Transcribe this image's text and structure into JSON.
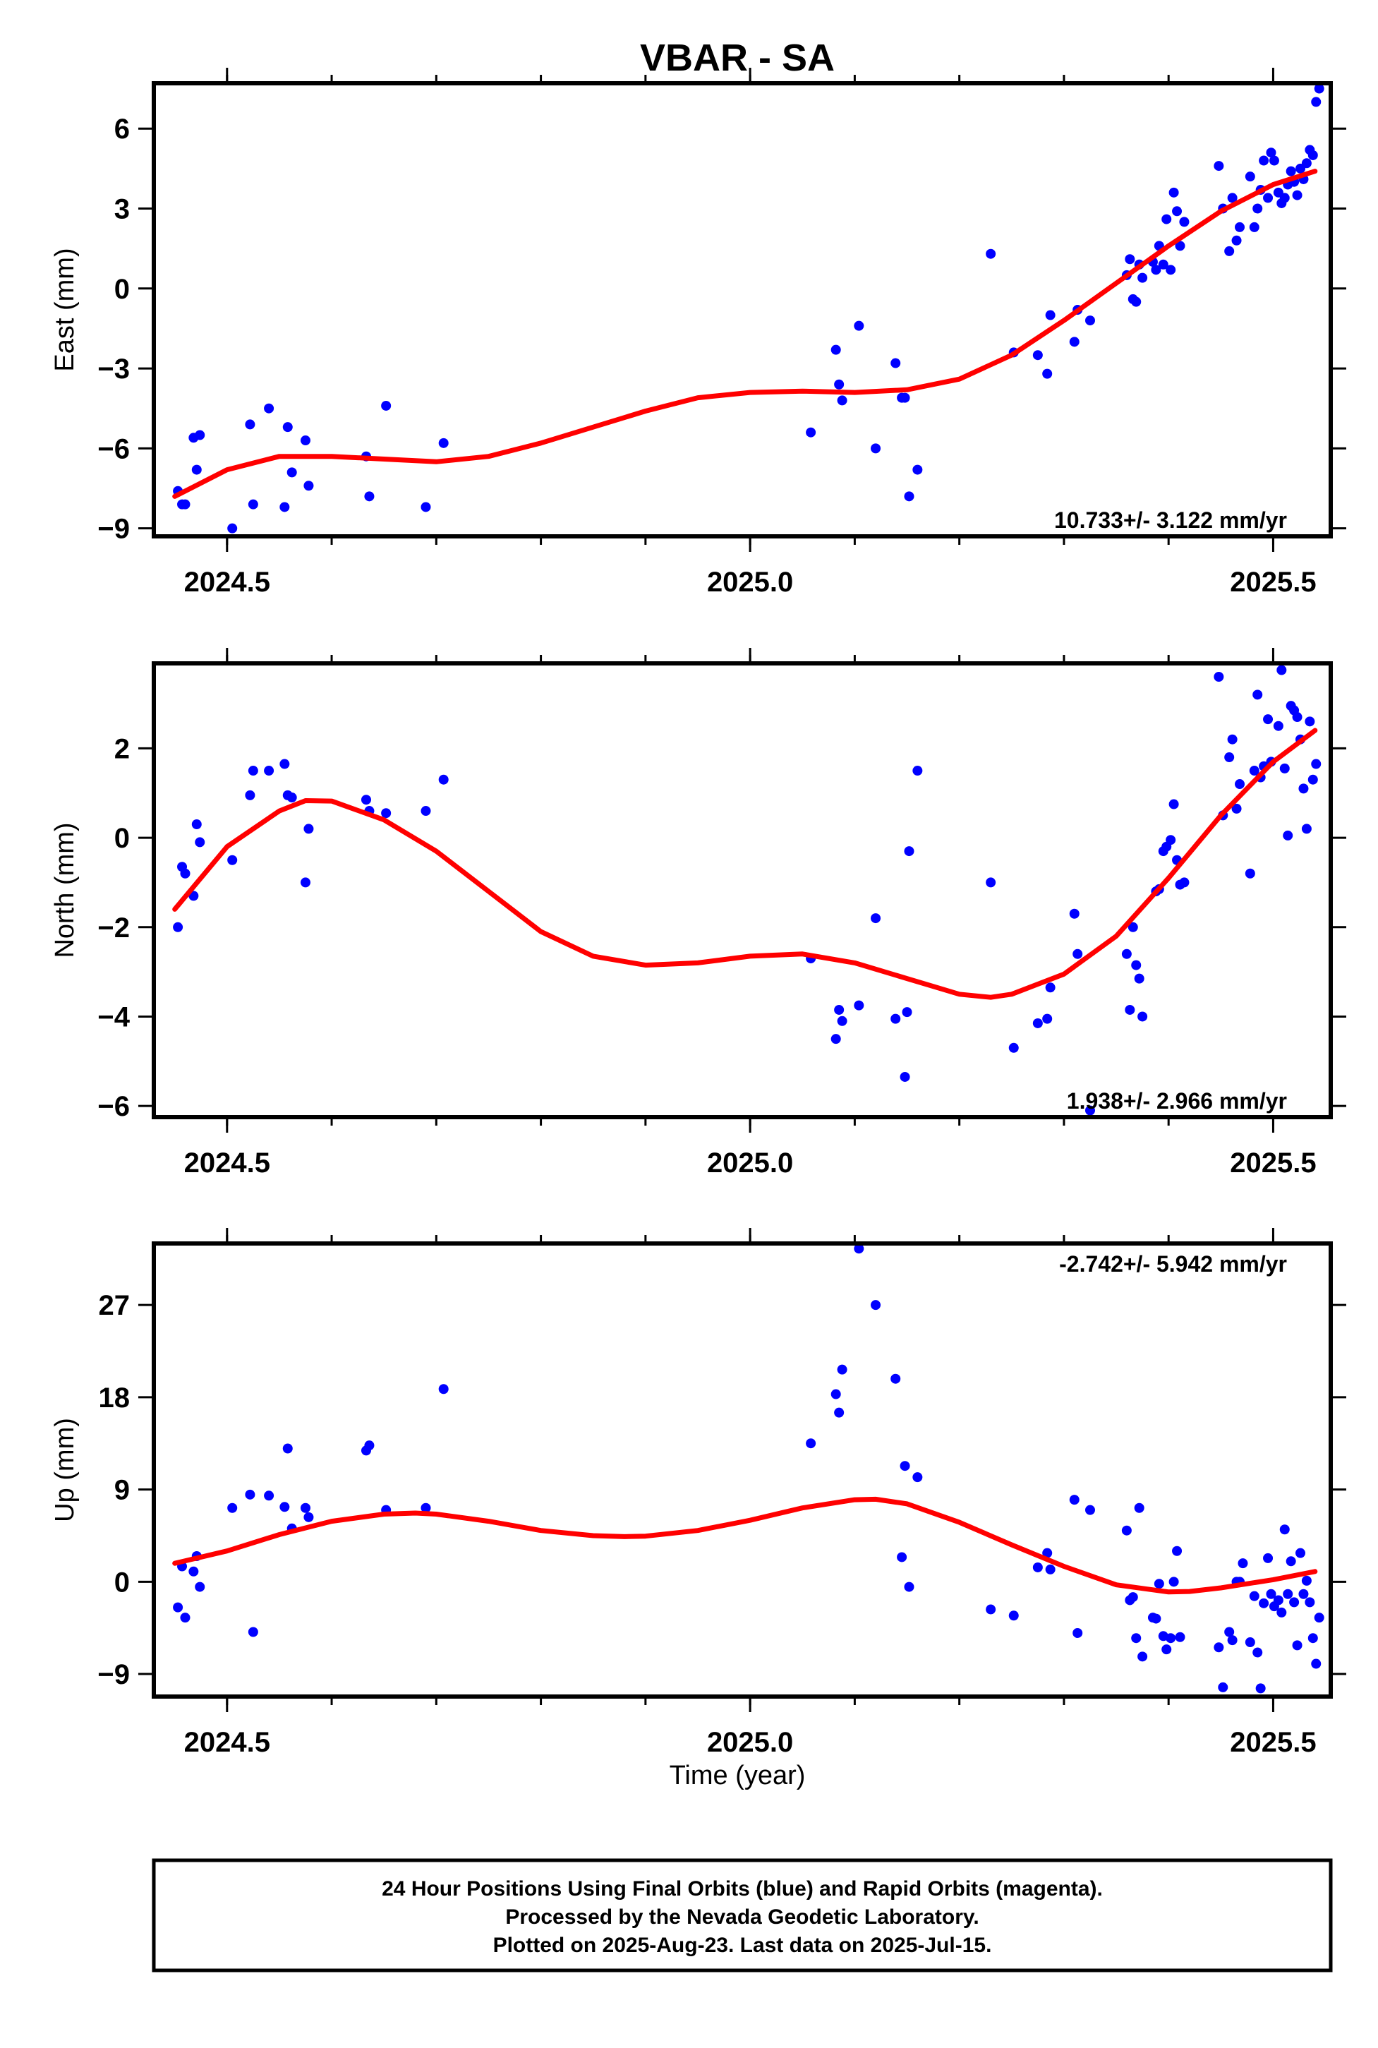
{
  "title": "VBAR - SA",
  "xlabel": "Time (year)",
  "footer": {
    "lines": [
      "24 Hour Positions Using Final Orbits (blue) and Rapid Orbits (magenta).",
      "Processed by the Nevada Geodetic Laboratory.",
      "Plotted on 2025-Aug-23. Last data on 2025-Jul-15."
    ]
  },
  "colors": {
    "points": "#0000ff",
    "fit": "#ff0000",
    "axes": "#000000"
  },
  "chart_data": [
    {
      "type": "scatter",
      "ylabel": "East (mm)",
      "rate": "10.733+/- 3.122 mm/yr",
      "xlim": [
        2024.43,
        2025.555
      ],
      "ylim": [
        -9.3,
        7.7
      ],
      "xticks": [
        2024.5,
        2025.0,
        2025.5
      ],
      "xtick_labels": [
        "2024.5",
        "2025.0",
        "2025.5"
      ],
      "yticks": [
        -9,
        -6,
        -3,
        0,
        3,
        6
      ],
      "ytick_labels": [
        "−9",
        "−6",
        "−3",
        "0",
        "3",
        "6"
      ],
      "points": [
        [
          2024.453,
          -7.6
        ],
        [
          2024.457,
          -8.1
        ],
        [
          2024.46,
          -8.1
        ],
        [
          2024.468,
          -5.6
        ],
        [
          2024.471,
          -6.8
        ],
        [
          2024.474,
          -5.5
        ],
        [
          2024.505,
          -9.0
        ],
        [
          2024.522,
          -5.1
        ],
        [
          2024.525,
          -8.1
        ],
        [
          2024.54,
          -4.5
        ],
        [
          2024.555,
          -8.2
        ],
        [
          2024.558,
          -5.2
        ],
        [
          2024.562,
          -6.9
        ],
        [
          2024.575,
          -5.7
        ],
        [
          2024.578,
          -7.4
        ],
        [
          2024.633,
          -6.3
        ],
        [
          2024.636,
          -7.8
        ],
        [
          2024.652,
          -4.4
        ],
        [
          2024.69,
          -8.2
        ],
        [
          2024.707,
          -5.8
        ],
        [
          2025.058,
          -5.4
        ],
        [
          2025.082,
          -2.3
        ],
        [
          2025.085,
          -3.6
        ],
        [
          2025.088,
          -4.2
        ],
        [
          2025.104,
          -1.4
        ],
        [
          2025.12,
          -6.0
        ],
        [
          2025.139,
          -2.8
        ],
        [
          2025.145,
          -4.1
        ],
        [
          2025.148,
          -4.1
        ],
        [
          2025.152,
          -7.8
        ],
        [
          2025.16,
          -6.8
        ],
        [
          2025.23,
          1.3
        ],
        [
          2025.252,
          -2.4
        ],
        [
          2025.275,
          -2.5
        ],
        [
          2025.284,
          -3.2
        ],
        [
          2025.287,
          -1.0
        ],
        [
          2025.31,
          -2.0
        ],
        [
          2025.313,
          -0.8
        ],
        [
          2025.325,
          -1.2
        ],
        [
          2025.36,
          0.5
        ],
        [
          2025.363,
          1.1
        ],
        [
          2025.366,
          -0.4
        ],
        [
          2025.369,
          -0.5
        ],
        [
          2025.372,
          0.9
        ],
        [
          2025.375,
          0.4
        ],
        [
          2025.385,
          1.0
        ],
        [
          2025.388,
          0.7
        ],
        [
          2025.391,
          1.6
        ],
        [
          2025.395,
          0.9
        ],
        [
          2025.398,
          2.6
        ],
        [
          2025.402,
          0.7
        ],
        [
          2025.405,
          3.6
        ],
        [
          2025.408,
          2.9
        ],
        [
          2025.411,
          1.6
        ],
        [
          2025.415,
          2.5
        ],
        [
          2025.448,
          4.6
        ],
        [
          2025.452,
          3.0
        ],
        [
          2025.458,
          1.4
        ],
        [
          2025.461,
          3.4
        ],
        [
          2025.465,
          1.8
        ],
        [
          2025.468,
          2.3
        ],
        [
          2025.478,
          4.2
        ],
        [
          2025.482,
          2.3
        ],
        [
          2025.485,
          3.0
        ],
        [
          2025.488,
          3.7
        ],
        [
          2025.491,
          4.8
        ],
        [
          2025.495,
          3.4
        ],
        [
          2025.498,
          5.1
        ],
        [
          2025.501,
          4.8
        ],
        [
          2025.505,
          3.6
        ],
        [
          2025.508,
          3.2
        ],
        [
          2025.511,
          3.4
        ],
        [
          2025.514,
          3.9
        ],
        [
          2025.517,
          4.4
        ],
        [
          2025.52,
          4.0
        ],
        [
          2025.523,
          3.5
        ],
        [
          2025.526,
          4.5
        ],
        [
          2025.529,
          4.1
        ],
        [
          2025.532,
          4.7
        ],
        [
          2025.535,
          5.2
        ],
        [
          2025.538,
          5.0
        ],
        [
          2025.541,
          7.0
        ],
        [
          2025.544,
          7.5
        ]
      ],
      "fit": [
        [
          2024.45,
          -7.8
        ],
        [
          2024.5,
          -6.8
        ],
        [
          2024.55,
          -6.3
        ],
        [
          2024.6,
          -6.3
        ],
        [
          2024.65,
          -6.4
        ],
        [
          2024.7,
          -6.5
        ],
        [
          2024.75,
          -6.3
        ],
        [
          2024.8,
          -5.8
        ],
        [
          2024.85,
          -5.2
        ],
        [
          2024.9,
          -4.6
        ],
        [
          2024.95,
          -4.1
        ],
        [
          2025.0,
          -3.9
        ],
        [
          2025.05,
          -3.85
        ],
        [
          2025.1,
          -3.9
        ],
        [
          2025.15,
          -3.8
        ],
        [
          2025.2,
          -3.4
        ],
        [
          2025.25,
          -2.5
        ],
        [
          2025.3,
          -1.2
        ],
        [
          2025.35,
          0.2
        ],
        [
          2025.4,
          1.6
        ],
        [
          2025.45,
          2.9
        ],
        [
          2025.5,
          3.9
        ],
        [
          2025.54,
          4.4
        ]
      ]
    },
    {
      "type": "scatter",
      "ylabel": "North (mm)",
      "rate": "1.938+/- 2.966 mm/yr",
      "xlim": [
        2024.43,
        2025.555
      ],
      "ylim": [
        -6.25,
        3.9
      ],
      "xticks": [
        2024.5,
        2025.0,
        2025.5
      ],
      "xtick_labels": [
        "2024.5",
        "2025.0",
        "2025.5"
      ],
      "yticks": [
        -6,
        -4,
        -2,
        0,
        2
      ],
      "ytick_labels": [
        "−6",
        "−4",
        "−2",
        "0",
        "2"
      ],
      "points": [
        [
          2024.453,
          -2.0
        ],
        [
          2024.457,
          -0.65
        ],
        [
          2024.46,
          -0.8
        ],
        [
          2024.468,
          -1.3
        ],
        [
          2024.471,
          0.3
        ],
        [
          2024.474,
          -0.1
        ],
        [
          2024.505,
          -0.5
        ],
        [
          2024.522,
          0.95
        ],
        [
          2024.525,
          1.5
        ],
        [
          2024.54,
          1.5
        ],
        [
          2024.555,
          1.65
        ],
        [
          2024.558,
          0.95
        ],
        [
          2024.562,
          0.9
        ],
        [
          2024.575,
          -1.0
        ],
        [
          2024.578,
          0.2
        ],
        [
          2024.633,
          0.85
        ],
        [
          2024.636,
          0.6
        ],
        [
          2024.652,
          0.55
        ],
        [
          2024.69,
          0.6
        ],
        [
          2024.707,
          1.3
        ],
        [
          2025.058,
          -2.7
        ],
        [
          2025.082,
          -4.5
        ],
        [
          2025.085,
          -3.85
        ],
        [
          2025.088,
          -4.1
        ],
        [
          2025.104,
          -3.75
        ],
        [
          2025.12,
          -1.8
        ],
        [
          2025.139,
          -4.05
        ],
        [
          2025.148,
          -5.35
        ],
        [
          2025.15,
          -3.9
        ],
        [
          2025.152,
          -0.3
        ],
        [
          2025.16,
          1.5
        ],
        [
          2025.23,
          -1.0
        ],
        [
          2025.252,
          -4.7
        ],
        [
          2025.275,
          -4.15
        ],
        [
          2025.284,
          -4.05
        ],
        [
          2025.287,
          -3.35
        ],
        [
          2025.31,
          -1.7
        ],
        [
          2025.313,
          -2.6
        ],
        [
          2025.325,
          -6.1
        ],
        [
          2025.36,
          -2.6
        ],
        [
          2025.363,
          -3.85
        ],
        [
          2025.366,
          -2.0
        ],
        [
          2025.369,
          -2.85
        ],
        [
          2025.372,
          -3.15
        ],
        [
          2025.375,
          -4.0
        ],
        [
          2025.388,
          -1.2
        ],
        [
          2025.391,
          -1.15
        ],
        [
          2025.395,
          -0.3
        ],
        [
          2025.398,
          -0.2
        ],
        [
          2025.402,
          -0.05
        ],
        [
          2025.405,
          0.75
        ],
        [
          2025.408,
          -0.5
        ],
        [
          2025.411,
          -1.05
        ],
        [
          2025.415,
          -1.0
        ],
        [
          2025.448,
          3.6
        ],
        [
          2025.452,
          0.5
        ],
        [
          2025.458,
          1.8
        ],
        [
          2025.461,
          2.2
        ],
        [
          2025.465,
          0.65
        ],
        [
          2025.468,
          1.2
        ],
        [
          2025.478,
          -0.8
        ],
        [
          2025.482,
          1.5
        ],
        [
          2025.485,
          3.2
        ],
        [
          2025.488,
          1.35
        ],
        [
          2025.491,
          1.6
        ],
        [
          2025.495,
          2.65
        ],
        [
          2025.498,
          1.7
        ],
        [
          2025.505,
          2.5
        ],
        [
          2025.508,
          3.75
        ],
        [
          2025.511,
          1.55
        ],
        [
          2025.514,
          0.05
        ],
        [
          2025.517,
          2.95
        ],
        [
          2025.52,
          2.85
        ],
        [
          2025.523,
          2.7
        ],
        [
          2025.526,
          2.2
        ],
        [
          2025.529,
          1.1
        ],
        [
          2025.532,
          0.2
        ],
        [
          2025.535,
          2.6
        ],
        [
          2025.538,
          1.3
        ],
        [
          2025.541,
          1.65
        ]
      ],
      "fit": [
        [
          2024.45,
          -1.6
        ],
        [
          2024.5,
          -0.2
        ],
        [
          2024.55,
          0.6
        ],
        [
          2024.575,
          0.83
        ],
        [
          2024.6,
          0.82
        ],
        [
          2024.65,
          0.4
        ],
        [
          2024.7,
          -0.3
        ],
        [
          2024.75,
          -1.2
        ],
        [
          2024.8,
          -2.1
        ],
        [
          2024.85,
          -2.65
        ],
        [
          2024.9,
          -2.85
        ],
        [
          2024.95,
          -2.8
        ],
        [
          2025.0,
          -2.65
        ],
        [
          2025.05,
          -2.6
        ],
        [
          2025.1,
          -2.8
        ],
        [
          2025.15,
          -3.15
        ],
        [
          2025.2,
          -3.5
        ],
        [
          2025.23,
          -3.57
        ],
        [
          2025.25,
          -3.5
        ],
        [
          2025.3,
          -3.05
        ],
        [
          2025.35,
          -2.2
        ],
        [
          2025.4,
          -0.9
        ],
        [
          2025.45,
          0.5
        ],
        [
          2025.5,
          1.7
        ],
        [
          2025.54,
          2.4
        ]
      ]
    },
    {
      "type": "scatter",
      "ylabel": "Up (mm)",
      "rate": "-2.742+/- 5.942 mm/yr",
      "xlim": [
        2024.43,
        2025.555
      ],
      "ylim": [
        -11.2,
        33.0
      ],
      "xticks": [
        2024.5,
        2025.0,
        2025.5
      ],
      "xtick_labels": [
        "2024.5",
        "2025.0",
        "2025.5"
      ],
      "yticks": [
        -9,
        0,
        9,
        18,
        27
      ],
      "ytick_labels": [
        "−9",
        "0",
        "9",
        "18",
        "27"
      ],
      "points": [
        [
          2024.453,
          -2.5
        ],
        [
          2024.457,
          1.5
        ],
        [
          2024.46,
          -3.5
        ],
        [
          2024.468,
          1.0
        ],
        [
          2024.471,
          2.5
        ],
        [
          2024.474,
          -0.5
        ],
        [
          2024.505,
          7.2
        ],
        [
          2024.522,
          8.5
        ],
        [
          2024.525,
          -4.9
        ],
        [
          2024.54,
          8.4
        ],
        [
          2024.555,
          7.3
        ],
        [
          2024.558,
          13.0
        ],
        [
          2024.562,
          5.2
        ],
        [
          2024.575,
          7.2
        ],
        [
          2024.578,
          6.3
        ],
        [
          2024.633,
          12.8
        ],
        [
          2024.636,
          13.3
        ],
        [
          2024.652,
          7.0
        ],
        [
          2024.69,
          7.2
        ],
        [
          2024.707,
          18.8
        ],
        [
          2025.058,
          13.5
        ],
        [
          2025.082,
          18.3
        ],
        [
          2025.085,
          16.5
        ],
        [
          2025.088,
          20.7
        ],
        [
          2025.104,
          32.5
        ],
        [
          2025.12,
          27.0
        ],
        [
          2025.139,
          19.8
        ],
        [
          2025.145,
          2.4
        ],
        [
          2025.148,
          11.3
        ],
        [
          2025.152,
          -0.5
        ],
        [
          2025.16,
          10.2
        ],
        [
          2025.23,
          -2.7
        ],
        [
          2025.252,
          -3.3
        ],
        [
          2025.275,
          1.4
        ],
        [
          2025.284,
          2.8
        ],
        [
          2025.287,
          1.2
        ],
        [
          2025.31,
          8.0
        ],
        [
          2025.313,
          -5.0
        ],
        [
          2025.325,
          7.0
        ],
        [
          2025.36,
          5.0
        ],
        [
          2025.363,
          -1.8
        ],
        [
          2025.366,
          -1.5
        ],
        [
          2025.369,
          -5.5
        ],
        [
          2025.372,
          7.2
        ],
        [
          2025.375,
          -7.3
        ],
        [
          2025.385,
          -3.5
        ],
        [
          2025.388,
          -3.6
        ],
        [
          2025.391,
          -0.2
        ],
        [
          2025.395,
          -5.3
        ],
        [
          2025.398,
          -6.6
        ],
        [
          2025.402,
          -5.5
        ],
        [
          2025.405,
          0.0
        ],
        [
          2025.408,
          3.0
        ],
        [
          2025.411,
          -5.4
        ],
        [
          2025.448,
          -6.4
        ],
        [
          2025.452,
          -10.3
        ],
        [
          2025.458,
          -4.9
        ],
        [
          2025.461,
          -5.7
        ],
        [
          2025.465,
          0.0
        ],
        [
          2025.468,
          0.0
        ],
        [
          2025.471,
          1.8
        ],
        [
          2025.478,
          -5.9
        ],
        [
          2025.482,
          -1.4
        ],
        [
          2025.485,
          -6.9
        ],
        [
          2025.488,
          -10.4
        ],
        [
          2025.491,
          -2.1
        ],
        [
          2025.495,
          2.3
        ],
        [
          2025.498,
          -1.2
        ],
        [
          2025.501,
          -2.4
        ],
        [
          2025.505,
          -1.8
        ],
        [
          2025.508,
          -3.0
        ],
        [
          2025.511,
          5.1
        ],
        [
          2025.514,
          -1.2
        ],
        [
          2025.517,
          2.0
        ],
        [
          2025.52,
          -2.0
        ],
        [
          2025.523,
          -6.2
        ],
        [
          2025.526,
          2.8
        ],
        [
          2025.529,
          -1.2
        ],
        [
          2025.532,
          0.1
        ],
        [
          2025.535,
          -2.0
        ],
        [
          2025.538,
          -5.5
        ],
        [
          2025.541,
          -8.0
        ],
        [
          2025.544,
          -3.5
        ]
      ],
      "fit": [
        [
          2024.45,
          1.8
        ],
        [
          2024.5,
          3.0
        ],
        [
          2024.55,
          4.6
        ],
        [
          2024.6,
          5.9
        ],
        [
          2024.65,
          6.6
        ],
        [
          2024.68,
          6.7
        ],
        [
          2024.7,
          6.6
        ],
        [
          2024.75,
          5.9
        ],
        [
          2024.8,
          5.0
        ],
        [
          2024.85,
          4.5
        ],
        [
          2024.88,
          4.4
        ],
        [
          2024.9,
          4.45
        ],
        [
          2024.95,
          5.0
        ],
        [
          2025.0,
          6.0
        ],
        [
          2025.05,
          7.2
        ],
        [
          2025.1,
          8.0
        ],
        [
          2025.12,
          8.05
        ],
        [
          2025.15,
          7.6
        ],
        [
          2025.2,
          5.8
        ],
        [
          2025.25,
          3.6
        ],
        [
          2025.3,
          1.5
        ],
        [
          2025.35,
          -0.3
        ],
        [
          2025.4,
          -1.0
        ],
        [
          2025.42,
          -0.95
        ],
        [
          2025.45,
          -0.6
        ],
        [
          2025.5,
          0.2
        ],
        [
          2025.54,
          1.0
        ]
      ]
    }
  ]
}
